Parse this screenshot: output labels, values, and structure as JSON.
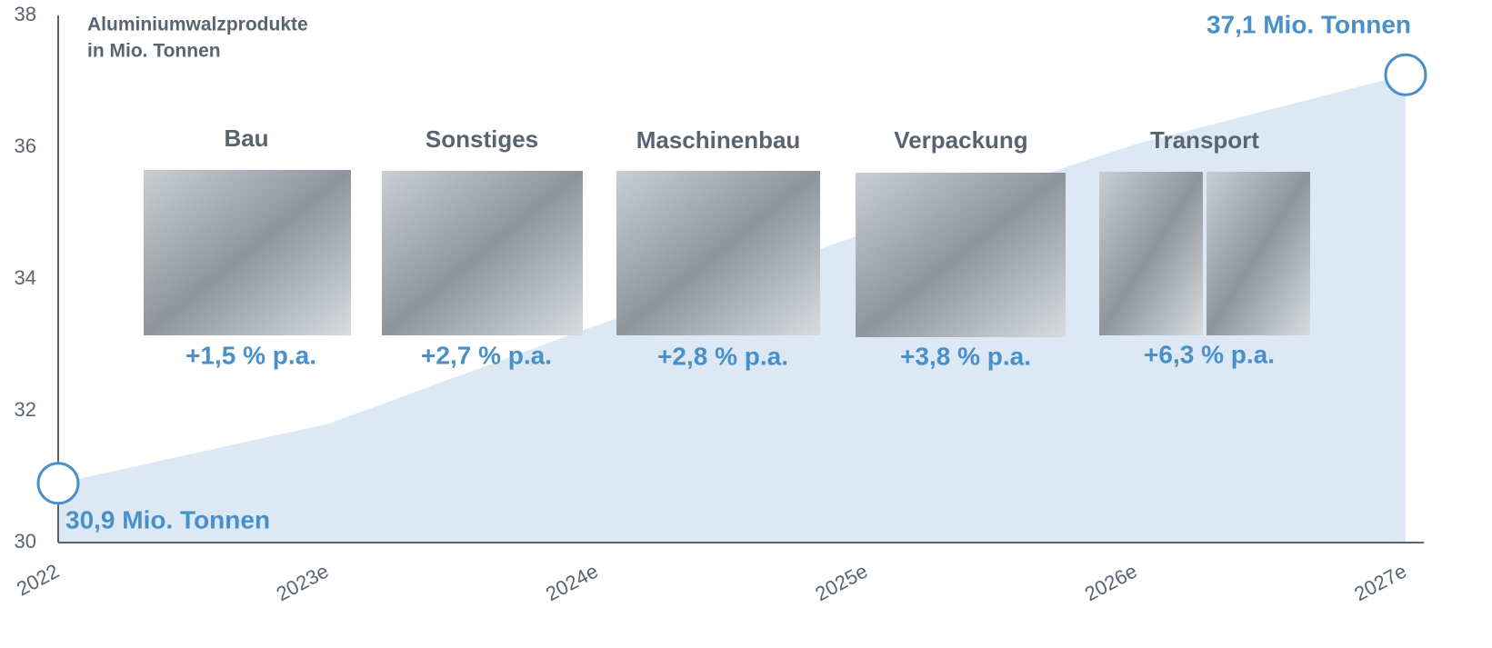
{
  "chart_data": {
    "type": "area",
    "title": "Aluminiumwalzprodukte",
    "subtitle": "in Mio. Tonnen",
    "categories": [
      "2022",
      "2023e",
      "2024e",
      "2025e",
      "2026e",
      "2027e"
    ],
    "values": [
      30.9,
      31.8,
      33.3,
      34.7,
      36.05,
      37.1
    ],
    "color": "#dce9f5",
    "marker_color": "#4a90c8",
    "ylim": [
      30,
      38
    ],
    "yticks": [
      30,
      32,
      34,
      36,
      38
    ],
    "annotations": {
      "start": "30,9 Mio. Tonnen",
      "end": "37,1 Mio. Tonnen"
    },
    "segments": [
      {
        "name": "Bau",
        "growth": "+1,5 % p.a."
      },
      {
        "name": "Sonstiges",
        "growth": "+2,7 % p.a."
      },
      {
        "name": "Maschinenbau",
        "growth": "+2,8 % p.a."
      },
      {
        "name": "Verpackung",
        "growth": "+3,8 % p.a."
      },
      {
        "name": "Transport",
        "growth": "+6,3 % p.a."
      }
    ]
  }
}
